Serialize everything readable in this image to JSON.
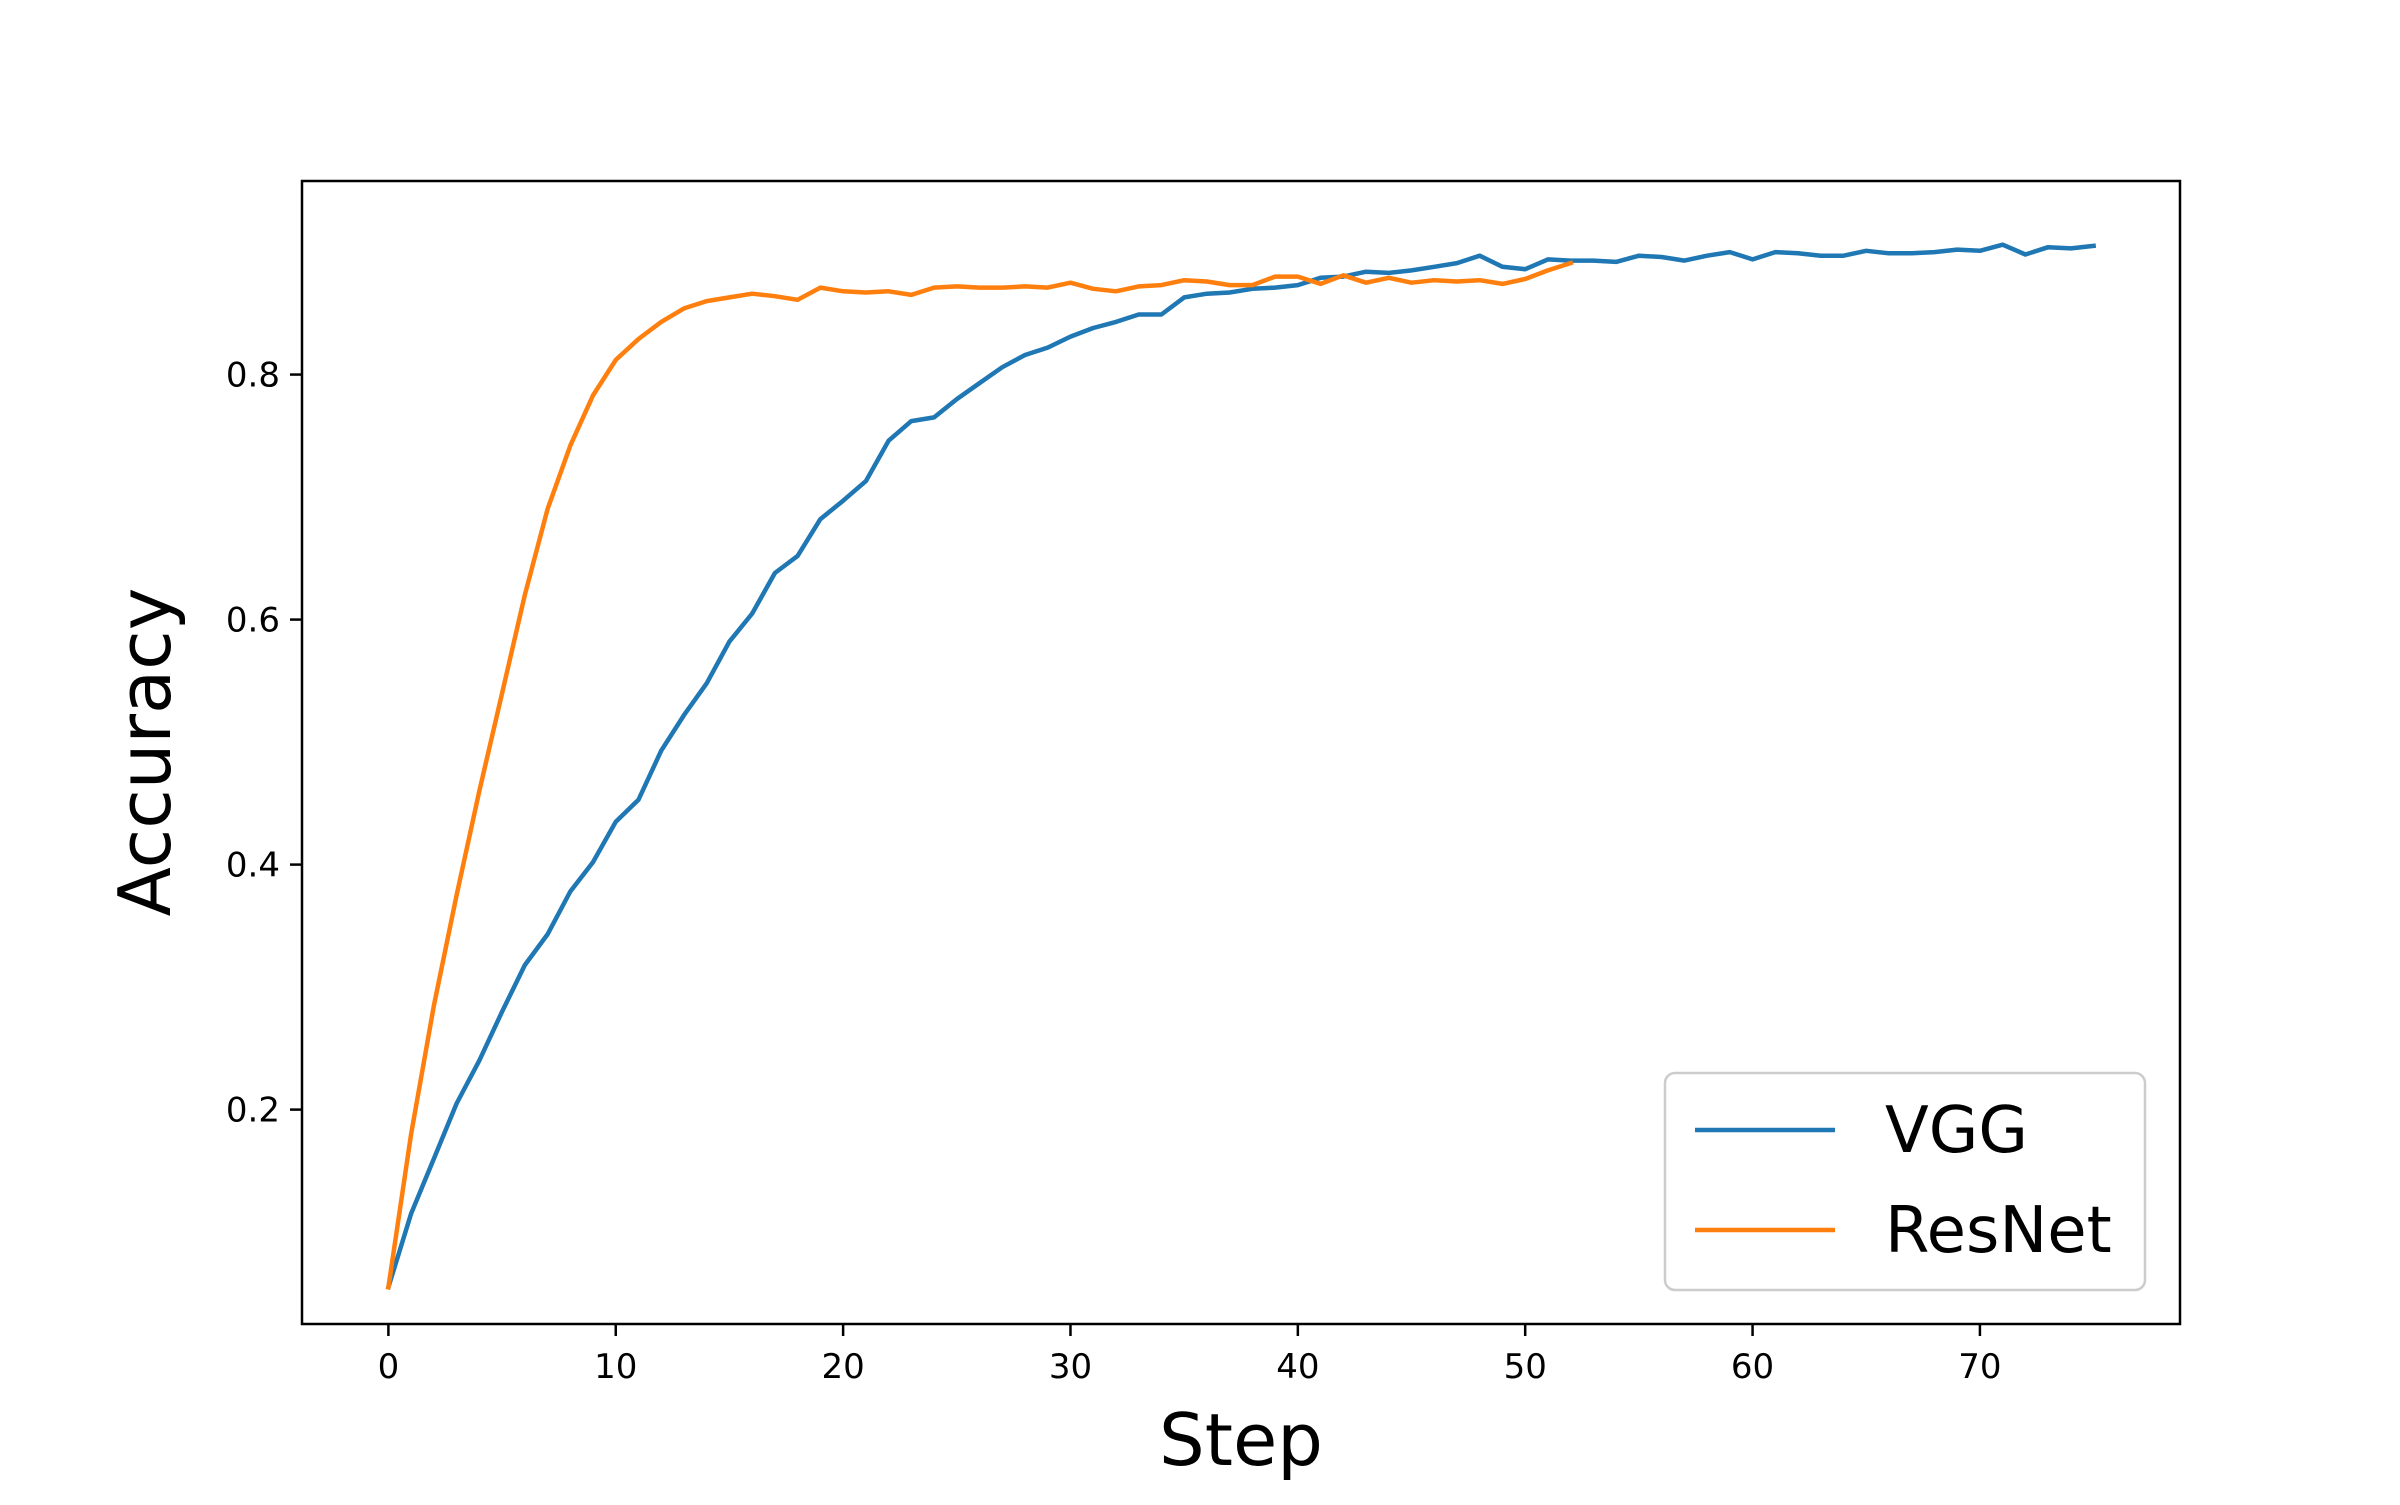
{
  "chart_data": {
    "type": "line",
    "title": "",
    "xlabel": "Step",
    "ylabel": "Accuracy",
    "xlim": [
      -3.8,
      78.8
    ],
    "ylim": [
      0.025,
      0.958
    ],
    "x_ticks": [
      0,
      10,
      20,
      30,
      40,
      50,
      60,
      70
    ],
    "y_ticks": [
      0.2,
      0.4,
      0.6,
      0.8
    ],
    "x_tick_labels": [
      "0",
      "10",
      "20",
      "30",
      "40",
      "50",
      "60",
      "70"
    ],
    "y_tick_labels": [
      "0.2",
      "0.4",
      "0.6",
      "0.8"
    ],
    "grid": false,
    "legend": {
      "position": "lower-right"
    },
    "series": [
      {
        "name": "VGG",
        "color": "#1f77b4",
        "x": [
          0,
          1,
          2,
          3,
          4,
          5,
          6,
          7,
          8,
          9,
          10,
          11,
          12,
          13,
          14,
          15,
          16,
          17,
          18,
          19,
          20,
          21,
          22,
          23,
          24,
          25,
          26,
          27,
          28,
          29,
          30,
          31,
          32,
          33,
          34,
          35,
          36,
          37,
          38,
          39,
          40,
          41,
          42,
          43,
          44,
          45,
          46,
          47,
          48,
          49,
          50,
          51,
          52,
          53,
          54,
          55,
          56,
          57,
          58,
          59,
          60,
          61,
          62,
          63,
          64,
          65,
          66,
          67,
          68,
          69,
          70,
          71,
          72,
          73,
          74,
          75
        ],
        "y": [
          0.055,
          0.115,
          0.16,
          0.205,
          0.24,
          0.28,
          0.318,
          0.343,
          0.378,
          0.402,
          0.435,
          0.453,
          0.493,
          0.522,
          0.548,
          0.582,
          0.605,
          0.638,
          0.652,
          0.682,
          0.697,
          0.713,
          0.746,
          0.762,
          0.765,
          0.78,
          0.793,
          0.806,
          0.816,
          0.822,
          0.831,
          0.838,
          0.843,
          0.849,
          0.849,
          0.863,
          0.866,
          0.867,
          0.87,
          0.871,
          0.873,
          0.879,
          0.88,
          0.884,
          0.883,
          0.885,
          0.888,
          0.891,
          0.897,
          0.888,
          0.886,
          0.894,
          0.893,
          0.893,
          0.892,
          0.897,
          0.896,
          0.893,
          0.897,
          0.9,
          0.894,
          0.9,
          0.899,
          0.897,
          0.897,
          0.901,
          0.899,
          0.899,
          0.9,
          0.902,
          0.901,
          0.906,
          0.898,
          0.904,
          0.903,
          0.905
        ]
      },
      {
        "name": "ResNet",
        "color": "#ff7f0e",
        "x": [
          0,
          1,
          2,
          3,
          4,
          5,
          6,
          7,
          8,
          9,
          10,
          11,
          12,
          13,
          14,
          15,
          16,
          17,
          18,
          19,
          20,
          21,
          22,
          23,
          24,
          25,
          26,
          27,
          28,
          29,
          30,
          31,
          32,
          33,
          34,
          35,
          36,
          37,
          38,
          39,
          40,
          41,
          42,
          43,
          44,
          45,
          46,
          47,
          48,
          49,
          50,
          51,
          52
        ],
        "y": [
          0.055,
          0.18,
          0.285,
          0.375,
          0.46,
          0.54,
          0.62,
          0.69,
          0.742,
          0.783,
          0.812,
          0.829,
          0.843,
          0.854,
          0.86,
          0.863,
          0.866,
          0.864,
          0.861,
          0.871,
          0.868,
          0.867,
          0.868,
          0.865,
          0.871,
          0.872,
          0.871,
          0.871,
          0.872,
          0.871,
          0.875,
          0.87,
          0.868,
          0.872,
          0.873,
          0.877,
          0.876,
          0.873,
          0.873,
          0.88,
          0.88,
          0.874,
          0.881,
          0.875,
          0.879,
          0.875,
          0.877,
          0.876,
          0.877,
          0.874,
          0.878,
          0.885,
          0.891
        ]
      }
    ]
  }
}
